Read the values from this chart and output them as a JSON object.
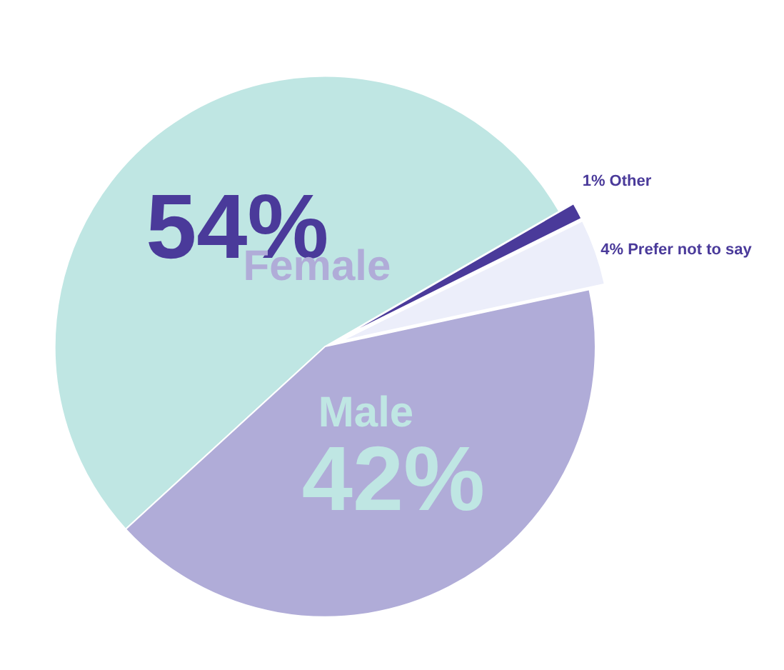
{
  "chart_data": {
    "type": "pie",
    "categories": [
      "Female",
      "Male",
      "Prefer not to say",
      "Other"
    ],
    "values": [
      54,
      42,
      4,
      1
    ],
    "value_labels": [
      "54%",
      "42%",
      "4%",
      "1%"
    ],
    "colors": [
      "#bfe6e3",
      "#b0acd8",
      "#eceefa",
      "#4a3a9a"
    ]
  }
}
